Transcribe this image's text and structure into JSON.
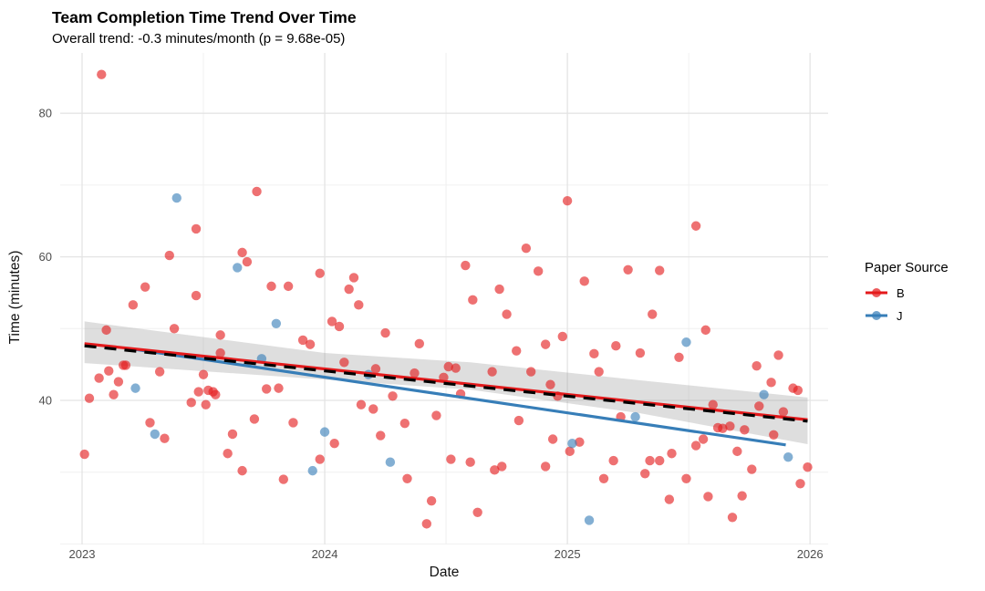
{
  "chart": {
    "title": "Team Completion Time Trend Over Time",
    "subtitle": "Overall trend: -0.3 minutes/month (p = 9.68e-05)",
    "xlabel": "Date",
    "ylabel": "Time (minutes)"
  },
  "legend": {
    "title": "Paper Source",
    "items": [
      {
        "label": "B",
        "color": "#E41A1C"
      },
      {
        "label": "J",
        "color": "#377EB8"
      }
    ]
  },
  "colors": {
    "point_alpha": 0.62,
    "grid_major": "#E4E4E4",
    "grid_minor": "#F0F0F0",
    "tick_label": "#4D4D4D",
    "ribbon": "#9B9B9B",
    "ribbon_alpha": 0.33,
    "overall_trend": "#000000"
  },
  "chart_data": {
    "type": "scatter",
    "title": "Team Completion Time Trend Over Time",
    "subtitle": "Overall trend: -0.3 minutes/month (p = 9.68e-05)",
    "xlabel": "Date",
    "ylabel": "Time (minutes)",
    "legend_title": "Paper Source",
    "legend_position": "right",
    "grid": true,
    "xlim": [
      2022.91,
      2026.07
    ],
    "ylim": [
      20,
      88
    ],
    "x_ticks": [
      2023,
      2024,
      2025,
      2026
    ],
    "y_ticks": [
      40,
      60,
      80
    ],
    "x_minor": [
      2023.5,
      2024.5,
      2025.5
    ],
    "y_minor": [
      20,
      30,
      50,
      70
    ],
    "series": [
      {
        "name": "B",
        "color": "#E41A1C",
        "points": [
          [
            2023.08,
            85.4
          ],
          [
            2023.47,
            63.9
          ],
          [
            2023.36,
            60.2
          ],
          [
            2023.72,
            69.1
          ],
          [
            2023.66,
            60.6
          ],
          [
            2023.68,
            59.3
          ],
          [
            2023.78,
            55.9
          ],
          [
            2023.85,
            55.9
          ],
          [
            2023.26,
            55.8
          ],
          [
            2023.47,
            54.6
          ],
          [
            2023.21,
            53.3
          ],
          [
            2023.98,
            57.7
          ],
          [
            2025.0,
            67.8
          ],
          [
            2024.83,
            61.2
          ],
          [
            2024.58,
            58.8
          ],
          [
            2024.88,
            58.0
          ],
          [
            2024.72,
            55.5
          ],
          [
            2024.61,
            54.0
          ],
          [
            2024.12,
            57.1
          ],
          [
            2024.1,
            55.5
          ],
          [
            2024.14,
            53.3
          ],
          [
            2025.53,
            64.3
          ],
          [
            2025.25,
            58.2
          ],
          [
            2025.38,
            58.1
          ],
          [
            2025.07,
            56.6
          ],
          [
            2023.1,
            49.8
          ],
          [
            2023.38,
            50.0
          ],
          [
            2023.57,
            49.1
          ],
          [
            2023.91,
            48.4
          ],
          [
            2023.94,
            47.8
          ],
          [
            2023.57,
            46.6
          ],
          [
            2023.17,
            44.9
          ],
          [
            2023.18,
            44.9
          ],
          [
            2023.11,
            44.1
          ],
          [
            2023.32,
            44.0
          ],
          [
            2023.07,
            43.1
          ],
          [
            2023.5,
            43.6
          ],
          [
            2023.15,
            42.6
          ],
          [
            2023.13,
            40.8
          ],
          [
            2023.03,
            40.3
          ],
          [
            2023.48,
            41.2
          ],
          [
            2023.52,
            41.4
          ],
          [
            2023.54,
            41.2
          ],
          [
            2023.55,
            40.8
          ],
          [
            2023.45,
            39.7
          ],
          [
            2023.51,
            39.4
          ],
          [
            2023.76,
            41.6
          ],
          [
            2023.81,
            41.7
          ],
          [
            2023.71,
            37.4
          ],
          [
            2023.87,
            36.9
          ],
          [
            2023.28,
            36.9
          ],
          [
            2023.34,
            34.7
          ],
          [
            2023.62,
            35.3
          ],
          [
            2023.6,
            32.6
          ],
          [
            2023.01,
            32.5
          ],
          [
            2023.98,
            31.8
          ],
          [
            2023.66,
            30.2
          ],
          [
            2023.83,
            29.0
          ],
          [
            2024.75,
            52.0
          ],
          [
            2024.03,
            51.0
          ],
          [
            2024.06,
            50.3
          ],
          [
            2024.25,
            49.4
          ],
          [
            2024.39,
            47.9
          ],
          [
            2024.98,
            48.9
          ],
          [
            2024.91,
            47.8
          ],
          [
            2024.79,
            46.9
          ],
          [
            2024.08,
            45.3
          ],
          [
            2024.21,
            44.4
          ],
          [
            2024.37,
            43.8
          ],
          [
            2024.51,
            44.7
          ],
          [
            2024.54,
            44.5
          ],
          [
            2024.69,
            44.0
          ],
          [
            2024.85,
            44.0
          ],
          [
            2024.49,
            43.2
          ],
          [
            2024.28,
            40.6
          ],
          [
            2024.56,
            40.9
          ],
          [
            2024.93,
            42.2
          ],
          [
            2024.96,
            40.6
          ],
          [
            2024.15,
            39.4
          ],
          [
            2024.2,
            38.8
          ],
          [
            2024.33,
            36.8
          ],
          [
            2024.46,
            37.9
          ],
          [
            2024.8,
            37.2
          ],
          [
            2024.04,
            34.0
          ],
          [
            2024.23,
            35.1
          ],
          [
            2024.94,
            34.6
          ],
          [
            2025.01,
            32.9
          ],
          [
            2024.52,
            31.8
          ],
          [
            2024.6,
            31.4
          ],
          [
            2024.7,
            30.3
          ],
          [
            2024.73,
            30.8
          ],
          [
            2024.91,
            30.8
          ],
          [
            2024.34,
            29.1
          ],
          [
            2024.44,
            26.0
          ],
          [
            2024.63,
            24.4
          ],
          [
            2024.42,
            22.8
          ],
          [
            2025.35,
            52.0
          ],
          [
            2025.57,
            49.8
          ],
          [
            2025.2,
            47.6
          ],
          [
            2025.11,
            46.5
          ],
          [
            2025.3,
            46.6
          ],
          [
            2025.46,
            46.0
          ],
          [
            2025.13,
            44.0
          ],
          [
            2025.78,
            44.8
          ],
          [
            2025.87,
            46.3
          ],
          [
            2025.84,
            42.5
          ],
          [
            2025.93,
            41.7
          ],
          [
            2025.95,
            41.4
          ],
          [
            2025.79,
            39.2
          ],
          [
            2025.89,
            38.4
          ],
          [
            2025.22,
            37.7
          ],
          [
            2025.6,
            39.4
          ],
          [
            2025.62,
            36.2
          ],
          [
            2025.64,
            36.1
          ],
          [
            2025.67,
            36.4
          ],
          [
            2025.73,
            35.9
          ],
          [
            2025.85,
            35.2
          ],
          [
            2025.05,
            34.2
          ],
          [
            2025.53,
            33.7
          ],
          [
            2025.56,
            34.6
          ],
          [
            2025.7,
            32.9
          ],
          [
            2025.19,
            31.6
          ],
          [
            2025.34,
            31.6
          ],
          [
            2025.38,
            31.6
          ],
          [
            2025.43,
            32.6
          ],
          [
            2025.99,
            30.7
          ],
          [
            2025.32,
            29.8
          ],
          [
            2025.76,
            30.4
          ],
          [
            2025.15,
            29.1
          ],
          [
            2025.49,
            29.1
          ],
          [
            2025.96,
            28.4
          ],
          [
            2025.42,
            26.2
          ],
          [
            2025.58,
            26.6
          ],
          [
            2025.72,
            26.7
          ],
          [
            2025.68,
            23.7
          ]
        ]
      },
      {
        "name": "J",
        "color": "#377EB8",
        "points": [
          [
            2023.39,
            68.2
          ],
          [
            2023.64,
            58.5
          ],
          [
            2023.8,
            50.7
          ],
          [
            2023.74,
            45.8
          ],
          [
            2023.22,
            41.7
          ],
          [
            2023.3,
            35.3
          ],
          [
            2023.95,
            30.2
          ],
          [
            2024.18,
            43.6
          ],
          [
            2024.0,
            35.6
          ],
          [
            2024.27,
            31.4
          ],
          [
            2025.02,
            34.0
          ],
          [
            2025.49,
            48.1
          ],
          [
            2025.81,
            40.8
          ],
          [
            2025.28,
            37.7
          ],
          [
            2025.91,
            32.1
          ],
          [
            2025.09,
            23.3
          ]
        ]
      }
    ],
    "trend_lines": [
      {
        "name": "J",
        "color": "#377EB8",
        "style": "solid",
        "x1": 2023.22,
        "y1": 47.1,
        "x2": 2025.9,
        "y2": 33.8
      },
      {
        "name": "B",
        "color": "#E41A1C",
        "style": "solid",
        "x1": 2023.01,
        "y1": 47.9,
        "x2": 2025.99,
        "y2": 37.3
      },
      {
        "name": "overall",
        "color": "#000000",
        "style": "dashed",
        "x1": 2023.01,
        "y1": 47.6,
        "x2": 2025.99,
        "y2": 37.1
      }
    ],
    "ci_ribbon": {
      "top": [
        [
          2023.01,
          51.0
        ],
        [
          2024.0,
          46.6
        ],
        [
          2024.6,
          45.3
        ],
        [
          2025.3,
          42.8
        ],
        [
          2025.99,
          40.4
        ]
      ],
      "bottom": [
        [
          2023.01,
          45.2
        ],
        [
          2024.0,
          42.9
        ],
        [
          2024.6,
          41.5
        ],
        [
          2025.3,
          38.2
        ],
        [
          2025.99,
          33.9
        ]
      ]
    }
  }
}
